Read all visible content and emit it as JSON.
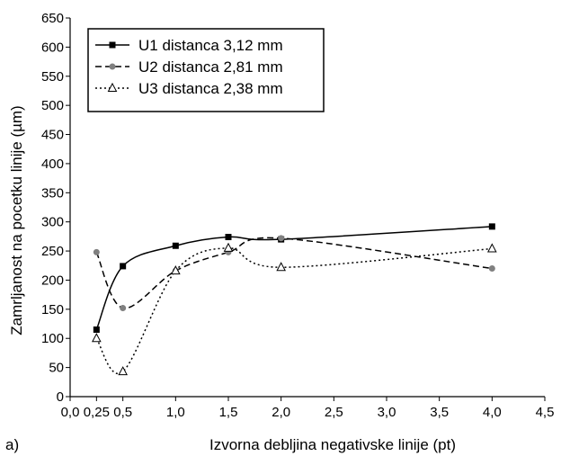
{
  "panel_label": "a)",
  "chart_data": {
    "type": "line",
    "xlabel": "Izvorna debljina negativske linije (pt)",
    "ylabel": "Zamrljanost na pocetku linije (µm)",
    "xlim": [
      0.0,
      4.5
    ],
    "ylim": [
      0,
      650
    ],
    "xticks": [
      0.0,
      0.5,
      1.0,
      1.5,
      2.0,
      2.5,
      3.0,
      3.5,
      4.0,
      4.5
    ],
    "xtick_labels": [
      "0,0",
      "0,5",
      "1,0",
      "1,5",
      "2,0",
      "2,5",
      "3,0",
      "3,5",
      "4,0",
      "4,5"
    ],
    "extra_xtick": {
      "value": 0.25,
      "label": "0,25"
    },
    "yticks": [
      0,
      50,
      100,
      150,
      200,
      250,
      300,
      350,
      400,
      450,
      500,
      550,
      600,
      650
    ],
    "ytick_labels": [
      "0",
      "50",
      "100",
      "150",
      "200",
      "250",
      "300",
      "350",
      "400",
      "450",
      "500",
      "550",
      "600",
      "650"
    ],
    "grid": false,
    "legend_position": "top-left",
    "x": [
      0.25,
      0.5,
      1.0,
      1.5,
      2.0,
      4.0
    ],
    "series": [
      {
        "name": "U1 distanca 3,12 mm",
        "values": [
          115,
          224,
          259,
          274,
          270,
          292
        ],
        "color": "#000000",
        "dash": "solid",
        "marker": "square"
      },
      {
        "name": "U2 distanca 2,81 mm",
        "values": [
          248,
          152,
          216,
          248,
          272,
          220
        ],
        "color": "#000000",
        "dash": "dashed",
        "marker": "circle",
        "marker_color": "#808080"
      },
      {
        "name": "U3 distanca 2,38 mm",
        "values": [
          100,
          43,
          216,
          255,
          222,
          254
        ],
        "color": "#000000",
        "dash": "dotted",
        "marker": "triangle-open"
      }
    ]
  }
}
